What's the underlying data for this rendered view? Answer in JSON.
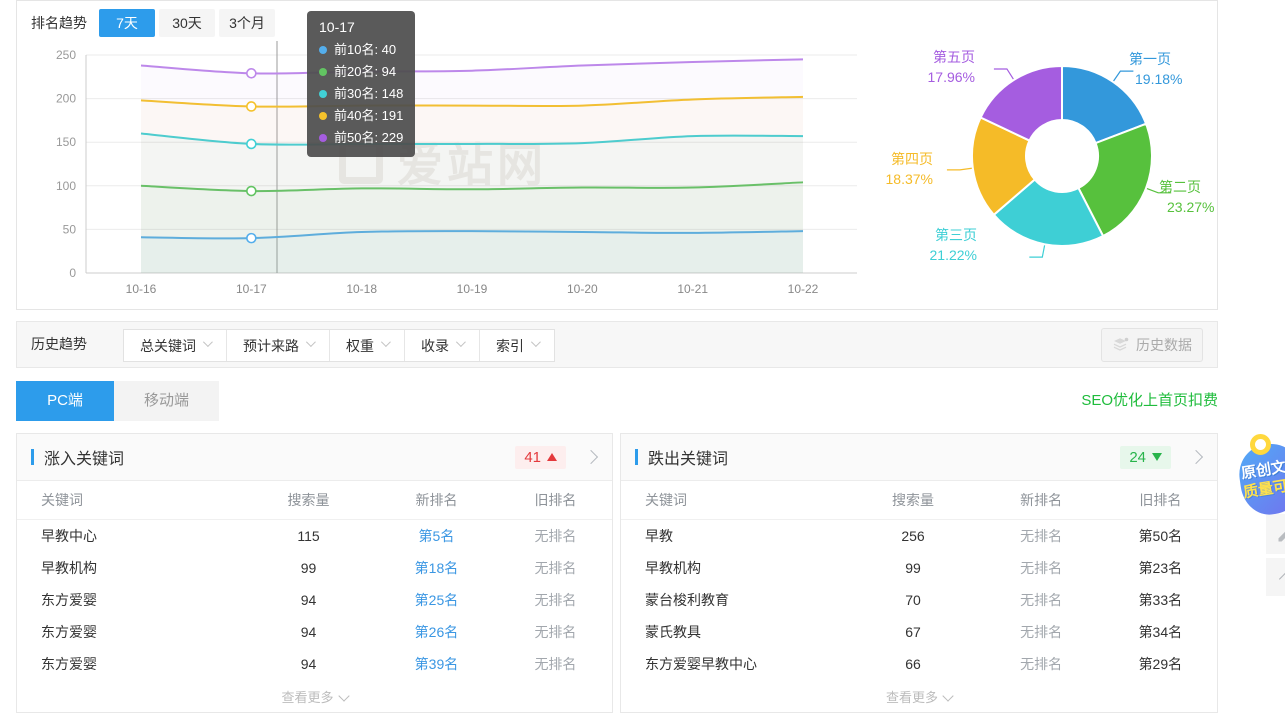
{
  "rank_trend": {
    "title": "排名趋势",
    "tabs": [
      {
        "label": "7天",
        "active": true
      },
      {
        "label": "30天",
        "active": false
      },
      {
        "label": "3个月",
        "active": false
      }
    ],
    "watermark": "爱站网"
  },
  "chart_data": [
    {
      "type": "line",
      "title": "排名趋势",
      "x": [
        "10-16",
        "10-17",
        "10-18",
        "10-19",
        "10-20",
        "10-21",
        "10-22"
      ],
      "series": [
        {
          "name": "前10名",
          "color": "#54aeec",
          "values": [
            41,
            40,
            47,
            48,
            47,
            46,
            48
          ]
        },
        {
          "name": "前20名",
          "color": "#62c462",
          "values": [
            100,
            94,
            97,
            96,
            98,
            98,
            104
          ]
        },
        {
          "name": "前30名",
          "color": "#41d0d5",
          "values": [
            160,
            148,
            148,
            148,
            149,
            157,
            157
          ]
        },
        {
          "name": "前40名",
          "color": "#f5c22b",
          "values": [
            198,
            191,
            192,
            192,
            192,
            199,
            202
          ]
        },
        {
          "name": "前50名",
          "color": "#bd88ea",
          "values": [
            238,
            229,
            231,
            232,
            238,
            242,
            245
          ]
        }
      ],
      "ylim": [
        0,
        250
      ],
      "yticks": [
        0,
        50,
        100,
        150,
        200,
        250
      ],
      "grid": true,
      "legend_position": "none",
      "highlight_x_index": 1
    },
    {
      "type": "pie",
      "donut": true,
      "categories": [
        "第一页",
        "第二页",
        "第三页",
        "第四页",
        "第五页"
      ],
      "values": [
        19.18,
        23.27,
        21.22,
        18.37,
        17.96
      ],
      "colors": [
        "#3398db",
        "#57c13d",
        "#3ecfd5",
        "#f5bb28",
        "#a55de0"
      ]
    }
  ],
  "tooltip": {
    "date": "10-17",
    "rows": [
      {
        "label": "前10名",
        "value": "40",
        "color": "#54aeec"
      },
      {
        "label": "前20名",
        "value": "94",
        "color": "#62c462"
      },
      {
        "label": "前30名",
        "value": "148",
        "color": "#41d0d5"
      },
      {
        "label": "前40名",
        "value": "191",
        "color": "#f5c22b"
      },
      {
        "label": "前50名",
        "value": "229",
        "color": "#a55de0"
      }
    ]
  },
  "donut_labels": [
    {
      "name": "第一页",
      "pct": "19.18%",
      "color": "#3398db"
    },
    {
      "name": "第二页",
      "pct": "23.27%",
      "color": "#57c13d"
    },
    {
      "name": "第三页",
      "pct": "21.22%",
      "color": "#3ecfd5"
    },
    {
      "name": "第四页",
      "pct": "18.37%",
      "color": "#f5bb28"
    },
    {
      "name": "第五页",
      "pct": "17.96%",
      "color": "#a55de0"
    }
  ],
  "history_bar": {
    "label": "历史趋势",
    "filters": [
      "总关键词",
      "预计来路",
      "权重",
      "收录",
      "索引"
    ],
    "history_button": "历史数据"
  },
  "device_tabs": {
    "pc": "PC端",
    "mobile": "移动端",
    "seo_link": "SEO优化上首页扣费"
  },
  "tables": [
    {
      "title": "涨入关键词",
      "count": "41",
      "trend": "up",
      "columns": [
        "关键词",
        "搜索量",
        "新排名",
        "旧排名"
      ],
      "rows": [
        {
          "keyword": "早教中心",
          "volume": "115",
          "new_rank": "第5名",
          "old_rank": "无排名"
        },
        {
          "keyword": "早教机构",
          "volume": "99",
          "new_rank": "第18名",
          "old_rank": "无排名"
        },
        {
          "keyword": "东方爱婴",
          "volume": "94",
          "new_rank": "第25名",
          "old_rank": "无排名"
        },
        {
          "keyword": "东方爱婴",
          "volume": "94",
          "new_rank": "第26名",
          "old_rank": "无排名"
        },
        {
          "keyword": "东方爱婴",
          "volume": "94",
          "new_rank": "第39名",
          "old_rank": "无排名"
        }
      ],
      "more": "查看更多"
    },
    {
      "title": "跌出关键词",
      "count": "24",
      "trend": "down",
      "columns": [
        "关键词",
        "搜索量",
        "新排名",
        "旧排名"
      ],
      "rows": [
        {
          "keyword": "早教",
          "volume": "256",
          "new_rank": "无排名",
          "old_rank": "第50名"
        },
        {
          "keyword": "早教机构",
          "volume": "99",
          "new_rank": "无排名",
          "old_rank": "第23名"
        },
        {
          "keyword": "蒙台梭利教育",
          "volume": "70",
          "new_rank": "无排名",
          "old_rank": "第33名"
        },
        {
          "keyword": "蒙氏教具",
          "volume": "67",
          "new_rank": "无排名",
          "old_rank": "第34名"
        },
        {
          "keyword": "东方爱婴早教中心",
          "volume": "66",
          "new_rank": "无排名",
          "old_rank": "第29名"
        }
      ],
      "more": "查看更多"
    }
  ],
  "floating": {
    "promo_line1": "原创文",
    "promo_line2": "质量可"
  }
}
